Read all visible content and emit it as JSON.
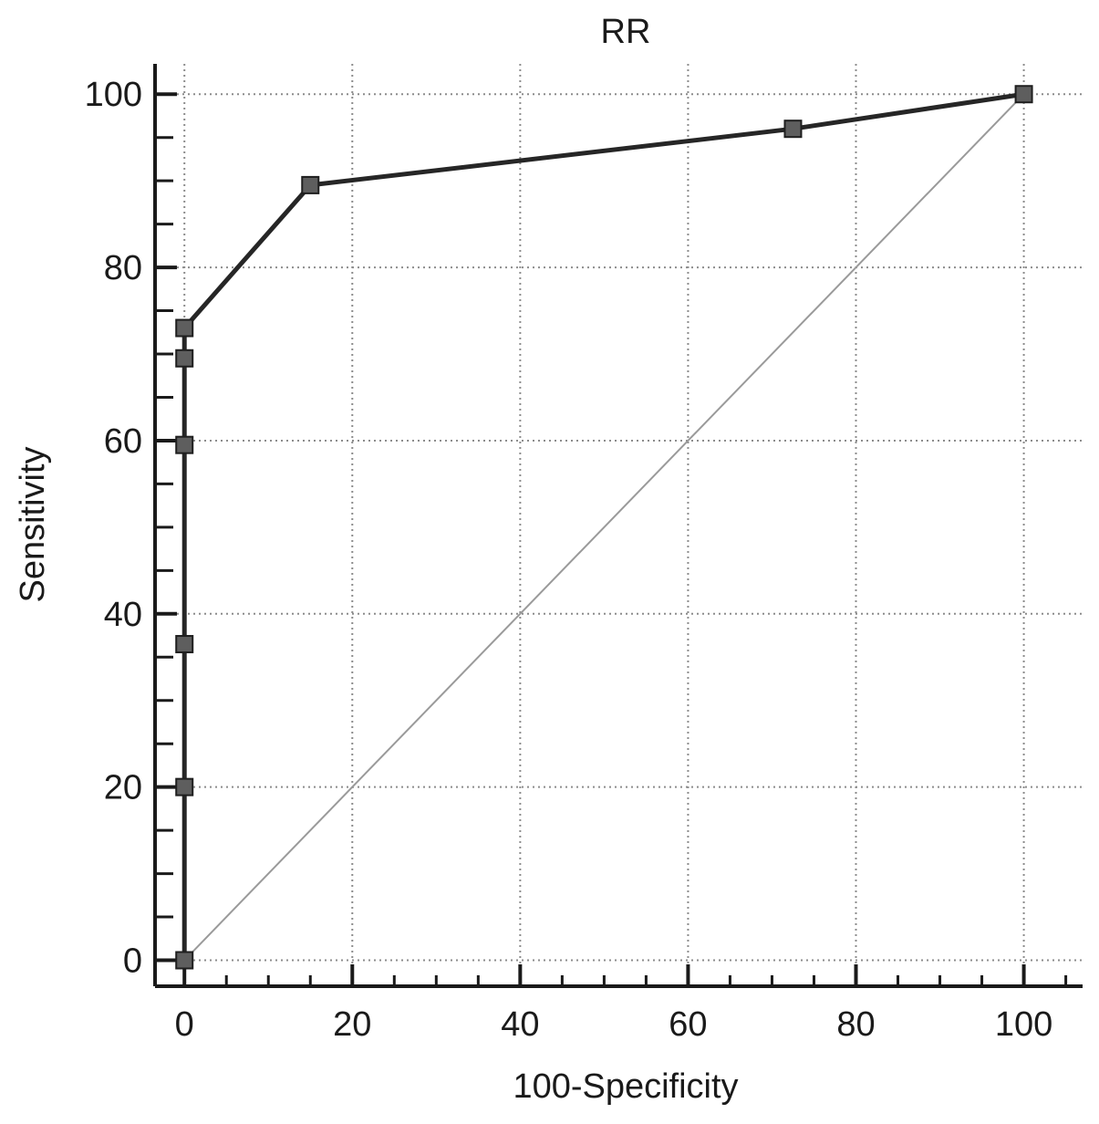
{
  "chart_data": {
    "type": "line",
    "title": "RR",
    "xlabel": "100-Specificity",
    "ylabel": "Sensitivity",
    "xlim": [
      -3.5,
      107
    ],
    "ylim": [
      -3,
      103.5
    ],
    "xticks": [
      0,
      20,
      40,
      60,
      80,
      100
    ],
    "yticks": [
      0,
      20,
      40,
      60,
      80,
      100
    ],
    "x_minor_step": 5,
    "y_minor_step": 5,
    "grid": true,
    "grid_style": "dotted",
    "series": [
      {
        "type": "roc",
        "color": "#262626",
        "marker": "square",
        "marker_color": "#5e5e5e",
        "points": [
          {
            "x": 0,
            "y": 0
          },
          {
            "x": 0,
            "y": 20
          },
          {
            "x": 0,
            "y": 36.5
          },
          {
            "x": 0,
            "y": 59.5
          },
          {
            "x": 0,
            "y": 69.5
          },
          {
            "x": 0,
            "y": 73
          },
          {
            "x": 15,
            "y": 89.5
          },
          {
            "x": 72.5,
            "y": 96
          },
          {
            "x": 100,
            "y": 100
          }
        ]
      },
      {
        "type": "reference",
        "color": "#9a9a9a",
        "marker": "none",
        "points": [
          {
            "x": 0,
            "y": 0
          },
          {
            "x": 100,
            "y": 100
          }
        ]
      }
    ]
  }
}
